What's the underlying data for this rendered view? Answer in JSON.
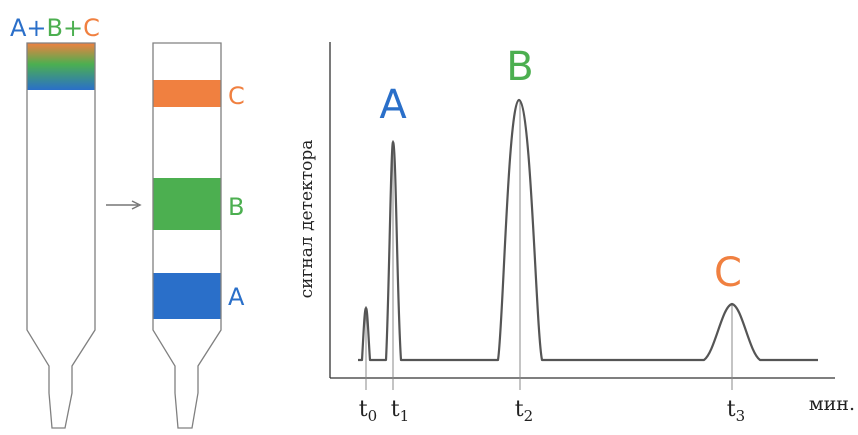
{
  "mixture_label": {
    "a": "A",
    "plus1": "+",
    "b": "B",
    "plus2": "+",
    "c": "C"
  },
  "column_bands": [
    {
      "label": "C",
      "color": "#f08040"
    },
    {
      "label": "B",
      "color": "#4caf50"
    },
    {
      "label": "A",
      "color": "#2a6fc9"
    }
  ],
  "colors": {
    "A": "#2a6fc9",
    "B": "#4caf50",
    "C": "#f08040",
    "outline": "#808080",
    "axis": "#333333",
    "trace": "#555555"
  },
  "chart": {
    "ylabel": "сигнал детектора",
    "xunit": "мин.",
    "ticks": [
      {
        "base": "t",
        "sub": "0"
      },
      {
        "base": "t",
        "sub": "1"
      },
      {
        "base": "t",
        "sub": "2"
      },
      {
        "base": "t",
        "sub": "3"
      }
    ],
    "peak_labels": [
      "A",
      "B",
      "C"
    ]
  }
}
